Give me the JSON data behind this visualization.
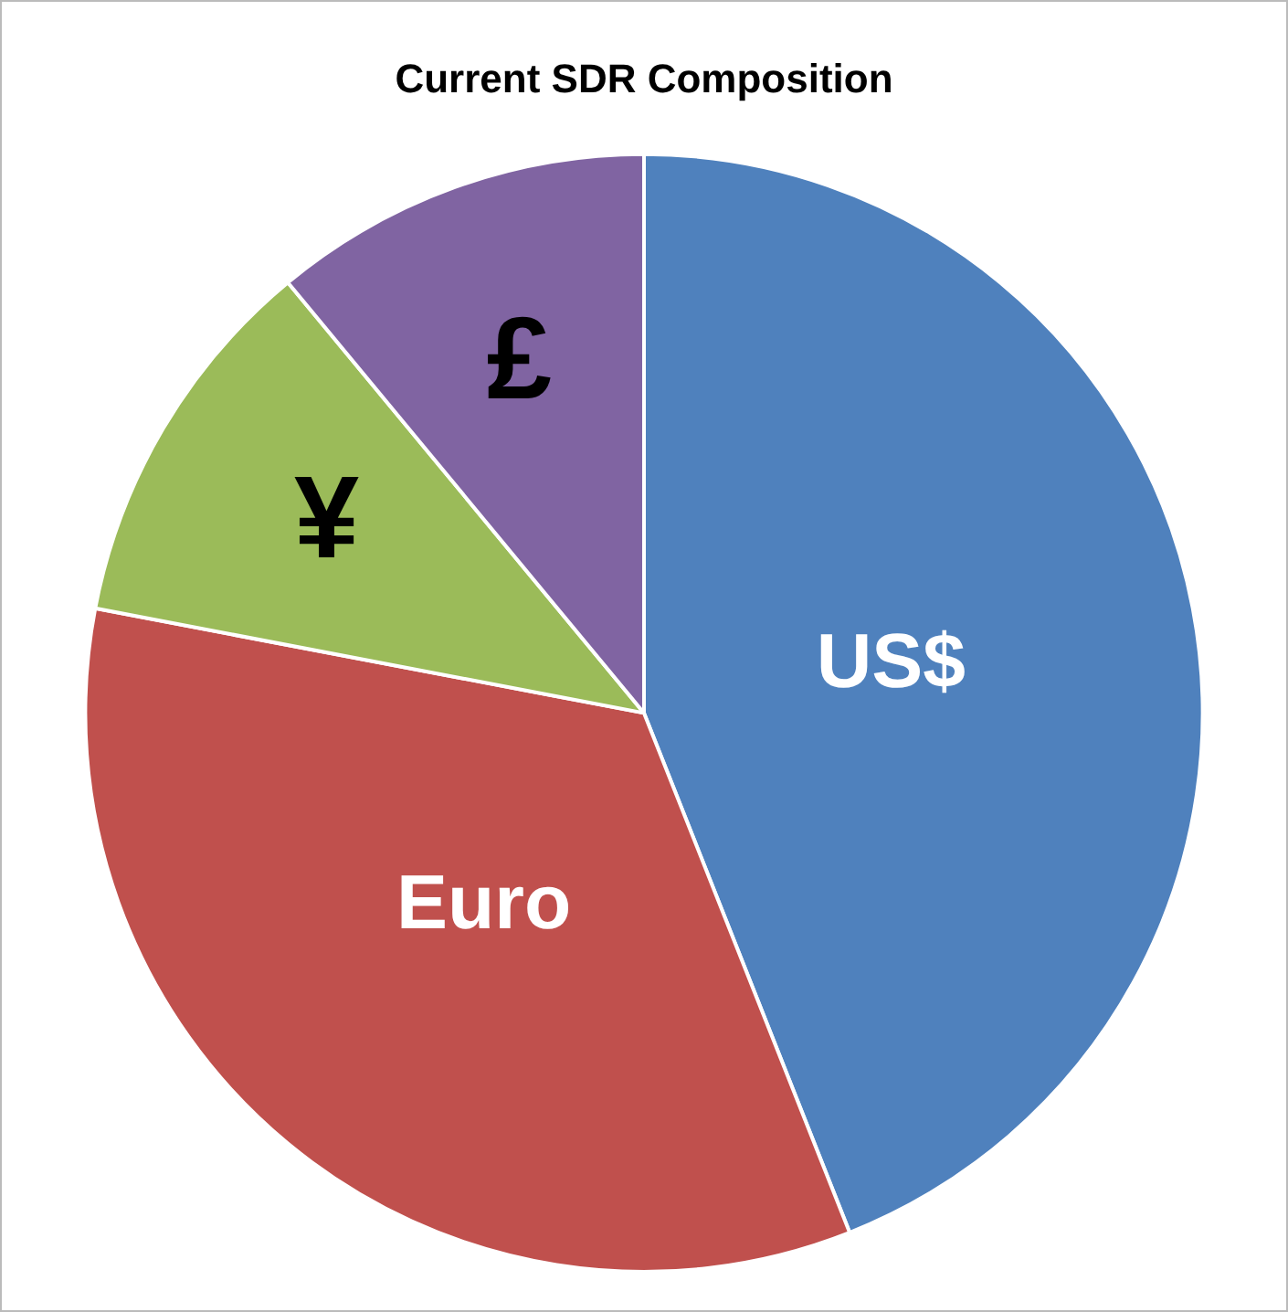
{
  "chart_data": {
    "type": "pie",
    "title": "Current SDR Composition",
    "categories": [
      "US$",
      "Euro",
      "¥",
      "£"
    ],
    "values": [
      44,
      34,
      11,
      11
    ],
    "colors": [
      "#4f81bd",
      "#c0504d",
      "#9bbb59",
      "#8064a2"
    ],
    "legend": false
  }
}
